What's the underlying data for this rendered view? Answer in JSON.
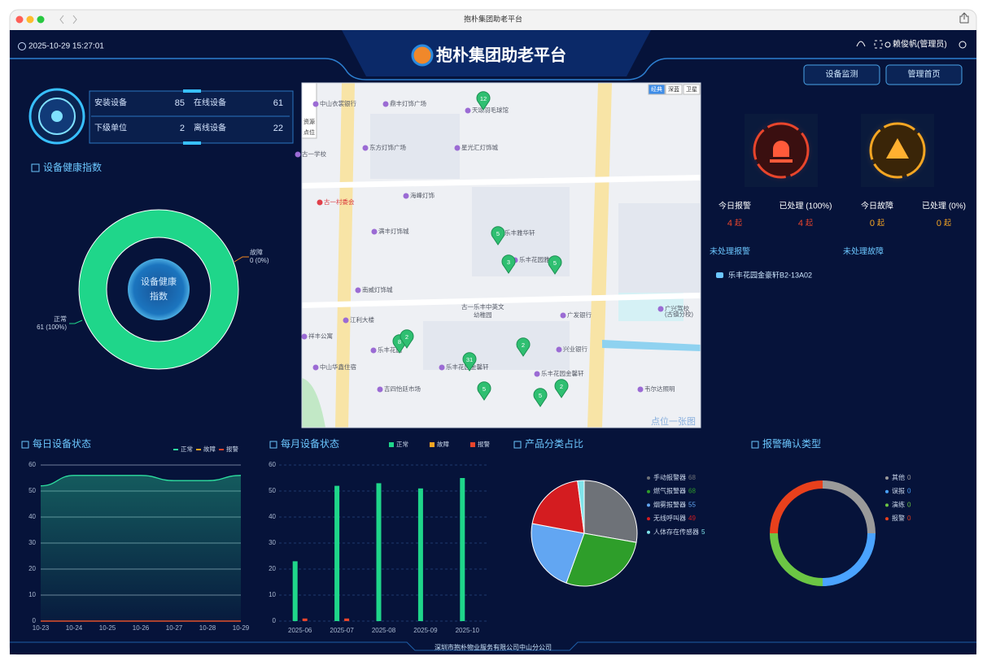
{
  "window_title": "抱朴集团助老平台",
  "header": {
    "datetime": "2025-10-29 15:27:01",
    "title": "抱朴集团助老平台",
    "user": "赖俊帆(管理员)",
    "buttons": [
      "设备监测",
      "管理首页"
    ]
  },
  "stats": [
    {
      "label": "安装设备",
      "value": 85
    },
    {
      "label": "在线设备",
      "value": 61
    },
    {
      "label": "下级单位",
      "value": 2
    },
    {
      "label": "离线设备",
      "value": 22
    }
  ],
  "alarms": [
    {
      "label": "今日报警",
      "count": 4,
      "unit": "起"
    },
    {
      "label": "已处理 (100%)",
      "count": 4,
      "unit": "起"
    },
    {
      "label": "今日故障",
      "count": 0,
      "unit": "起"
    },
    {
      "label": "已处理 (0%)",
      "count": 0,
      "unit": "起"
    }
  ],
  "pending": {
    "alarm_title": "未处理报警",
    "fault_title": "未处理故障",
    "alarm_items": [
      "乐丰花园金豪轩B2-13A02"
    ]
  },
  "map": {
    "tabs": [
      "经典",
      "深蓝",
      "卫星"
    ],
    "tools": [
      "资源",
      "点位"
    ],
    "watermark": "点位一张图",
    "labels": [
      "中山衣裳银行",
      "鼎丰灯饰广场",
      "天颂羽毛球馆",
      "东方灯饰广场",
      "星光汇灯饰城",
      "古一学校",
      "古一村委会",
      "海峰灯饰",
      "满丰灯饰城",
      "乐丰雅华轩",
      "乐丰花园雅轩",
      "南威灯饰城",
      "古一乐丰中英文",
      "幼稚园",
      "广发银行",
      "广兴驾校",
      "(古镇分校)",
      "江利大楼",
      "祥丰公寓",
      "兴业银行",
      "乐丰花园",
      "中山华鑫住宿",
      "乐丰花园金馨轩",
      "乐丰花园金馨轩",
      "吉四怡廷市场",
      "韦尔达照明"
    ],
    "markers": [
      12,
      5,
      3,
      5,
      8,
      2,
      31,
      2,
      5,
      5,
      2
    ]
  },
  "footer": "深圳市抱朴物业服务有限公司中山分公司",
  "chart_data": [
    {
      "type": "donut",
      "title": "设备健康指数",
      "center_label": "设备健康指数",
      "categories": [
        "正常",
        "故障"
      ],
      "values": [
        61,
        0
      ],
      "value_labels": [
        "61 (100%)",
        "0 (0%)"
      ],
      "colors": [
        "#1fd68a",
        "#f58a1f"
      ]
    },
    {
      "type": "line",
      "title": "每日设备状态",
      "categories": [
        "10-23",
        "10-24",
        "10-25",
        "10-26",
        "10-27",
        "10-28",
        "10-29"
      ],
      "series": [
        {
          "name": "正常",
          "color": "#2ee0a0",
          "values": [
            52,
            56,
            56,
            56,
            54,
            54,
            56
          ]
        },
        {
          "name": "故障",
          "color": "#f5a623",
          "values": [
            0,
            0,
            0,
            0,
            0,
            0,
            0
          ]
        },
        {
          "name": "报警",
          "color": "#e8452c",
          "values": [
            0,
            0,
            0,
            0,
            0,
            0,
            0
          ]
        }
      ],
      "ylim": [
        0,
        60
      ],
      "yticks": [
        0,
        10,
        20,
        30,
        40,
        50,
        60
      ],
      "grid": true
    },
    {
      "type": "bar",
      "title": "每月设备状态",
      "categories": [
        "2025-06",
        "2025-07",
        "2025-08",
        "2025-09",
        "2025-10"
      ],
      "series": [
        {
          "name": "正常",
          "color": "#1fd68a",
          "values": [
            23,
            52,
            53,
            51,
            55
          ]
        },
        {
          "name": "故障",
          "color": "#f5a623",
          "values": [
            0,
            0,
            0,
            0,
            0
          ]
        },
        {
          "name": "报警",
          "color": "#e8452c",
          "values": [
            1,
            1,
            0,
            0,
            0
          ]
        }
      ],
      "ylim": [
        0,
        60
      ],
      "yticks": [
        0,
        10,
        20,
        30,
        40,
        50,
        60
      ],
      "grid": true
    },
    {
      "type": "pie",
      "title": "产品分类占比",
      "categories": [
        "手动报警器",
        "燃气报警器",
        "烟雾报警器",
        "无线呼叫器",
        "人体存在传感器"
      ],
      "values": [
        68,
        68,
        55,
        49,
        5
      ],
      "colors": [
        "#6e7278",
        "#2e9e2a",
        "#62a6f2",
        "#d41c20",
        "#7fe3ea"
      ]
    },
    {
      "type": "donut",
      "title": "报警确认类型",
      "categories": [
        "其他",
        "误报",
        "演练",
        "报警"
      ],
      "values": [
        0,
        0,
        0,
        0
      ],
      "colors": [
        "#9a9a9a",
        "#4aa3ff",
        "#6cc644",
        "#e8401c"
      ]
    }
  ]
}
